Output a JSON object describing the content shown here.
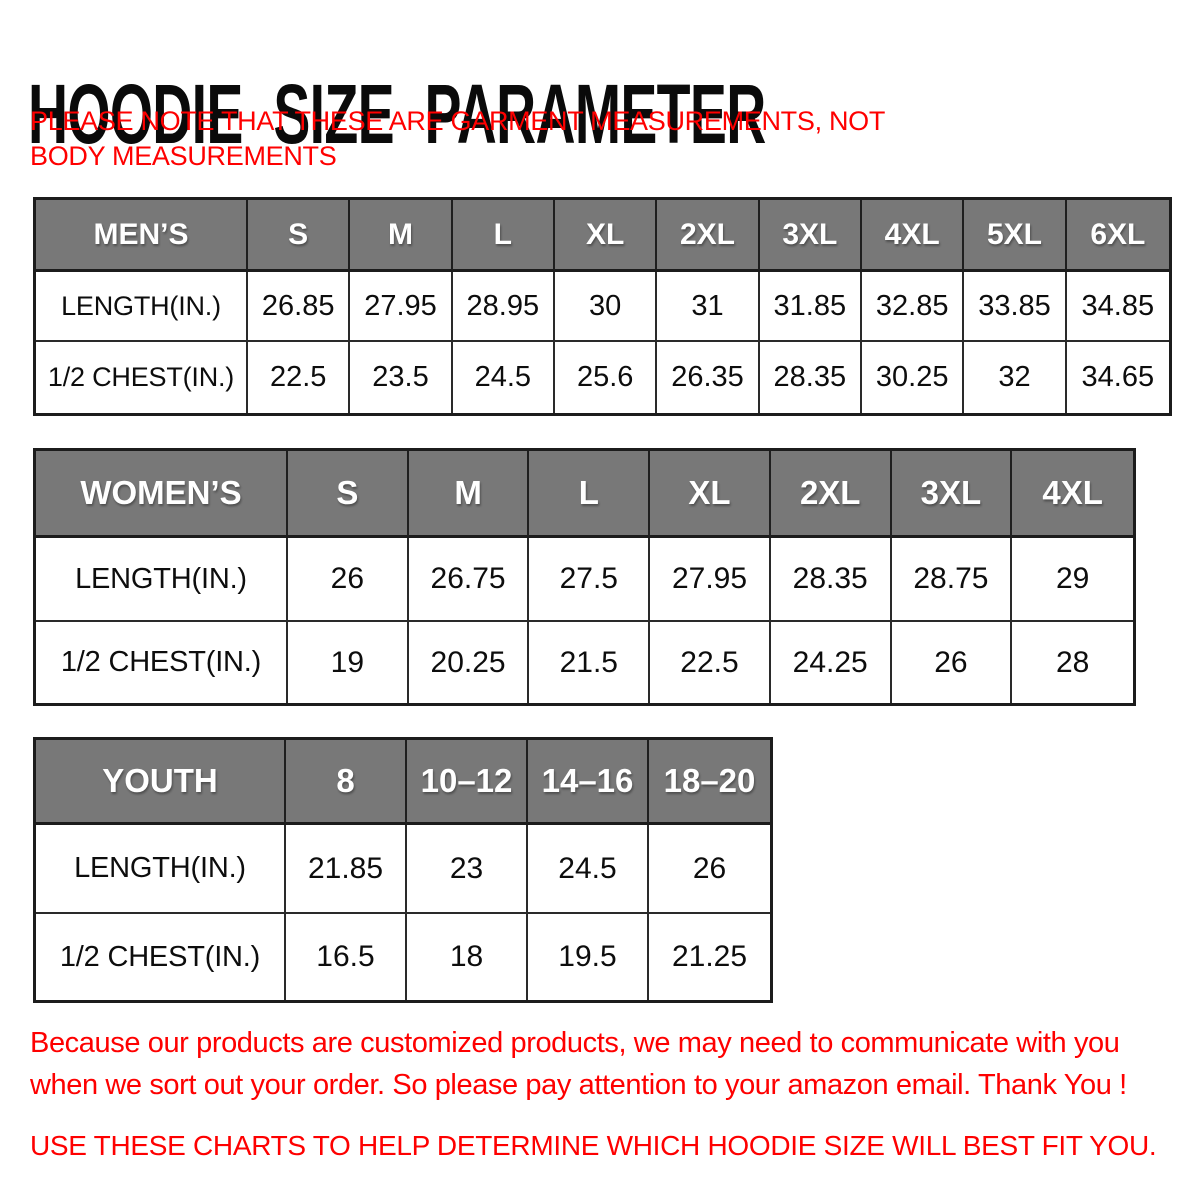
{
  "page": {
    "title": "HOODIE SIZE PARAMETER",
    "note": "PLEASE NOTE THAT THESE ARE GARMENT MEASUREMENTS, NOT BODY MEASUREMENTS",
    "footer_notice": "Because our products are customized products, we may need to communicate with you when we sort out your order. So please pay attention to your amazon email. Thank You !",
    "footer_advice": "USE THESE CHARTS TO HELP DETERMINE WHICH HOODIE SIZE WILL BEST FIT YOU."
  },
  "colors": {
    "header_gray": "#787878",
    "accent_red": "#fe0000",
    "border_dark": "#1c1c1c",
    "text_black": "#0d0d0d",
    "header_text_white": "#ffffff",
    "background": "#ffffff"
  },
  "tables": [
    {
      "id": "mens",
      "group_label": "MEN’S",
      "sizes": [
        "S",
        "M",
        "L",
        "XL",
        "2XL",
        "3XL",
        "4XL",
        "5XL",
        "6XL"
      ],
      "rows": [
        {
          "label": "LENGTH(IN.)",
          "values": [
            "26.85",
            "27.95",
            "28.95",
            "30",
            "31",
            "31.85",
            "32.85",
            "33.85",
            "34.85"
          ]
        },
        {
          "label": "1/2 CHEST(IN.)",
          "values": [
            "22.5",
            "23.5",
            "24.5",
            "25.6",
            "26.35",
            "28.35",
            "30.25",
            "32",
            "34.65"
          ]
        }
      ]
    },
    {
      "id": "womens",
      "group_label": "WOMEN’S",
      "sizes": [
        "S",
        "M",
        "L",
        "XL",
        "2XL",
        "3XL",
        "4XL"
      ],
      "rows": [
        {
          "label": "LENGTH(IN.)",
          "values": [
            "26",
            "26.75",
            "27.5",
            "27.95",
            "28.35",
            "28.75",
            "29"
          ]
        },
        {
          "label": "1/2 CHEST(IN.)",
          "values": [
            "19",
            "20.25",
            "21.5",
            "22.5",
            "24.25",
            "26",
            "28"
          ]
        }
      ]
    },
    {
      "id": "youth",
      "group_label": "YOUTH",
      "sizes": [
        "8",
        "10–12",
        "14–16",
        "18–20"
      ],
      "rows": [
        {
          "label": "LENGTH(IN.)",
          "values": [
            "21.85",
            "23",
            "24.5",
            "26"
          ]
        },
        {
          "label": "1/2 CHEST(IN.)",
          "values": [
            "16.5",
            "18",
            "19.5",
            "21.25"
          ]
        }
      ]
    }
  ]
}
